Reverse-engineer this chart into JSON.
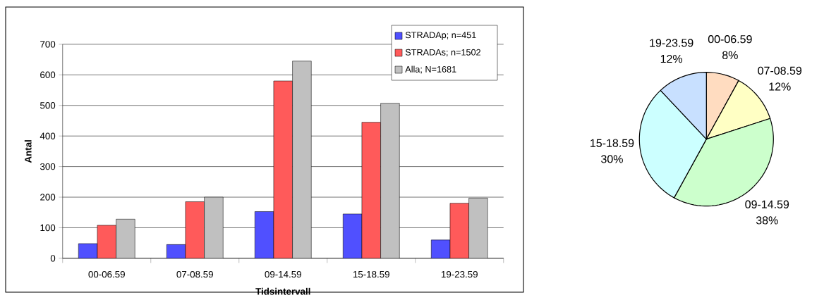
{
  "chart_data": [
    {
      "type": "bar",
      "xlabel": "Tidsintervall",
      "ylabel": "Antal",
      "categories": [
        "00-06.59",
        "07-08.59",
        "09-14.59",
        "15-18.59",
        "19-23.59"
      ],
      "series": [
        {
          "name": "STRADAp; n=451",
          "color": "#5050ff",
          "values": [
            48,
            45,
            153,
            145,
            60
          ]
        },
        {
          "name": "STRADAs; n=1502",
          "color": "#ff5a5a",
          "values": [
            108,
            185,
            580,
            445,
            180
          ]
        },
        {
          "name": "Alla; N=1681",
          "color": "#c0c0c0",
          "values": [
            128,
            200,
            645,
            507,
            197
          ]
        }
      ],
      "ylim": [
        0,
        700
      ],
      "yticks": [
        0,
        100,
        200,
        300,
        400,
        500,
        600,
        700
      ],
      "grid": "y",
      "legend": "top right"
    },
    {
      "type": "pie",
      "categories": [
        "00-06.59",
        "07-08.59",
        "09-14.59",
        "15-18.59",
        "19-23.59"
      ],
      "values": [
        8,
        12,
        38,
        30,
        12
      ],
      "value_labels": [
        "8%",
        "12%",
        "38%",
        "30%",
        "12%"
      ],
      "colors": [
        "#ffdcc0",
        "#ffffc4",
        "#ccffcc",
        "#ccffff",
        "#c8e0ff"
      ]
    }
  ]
}
